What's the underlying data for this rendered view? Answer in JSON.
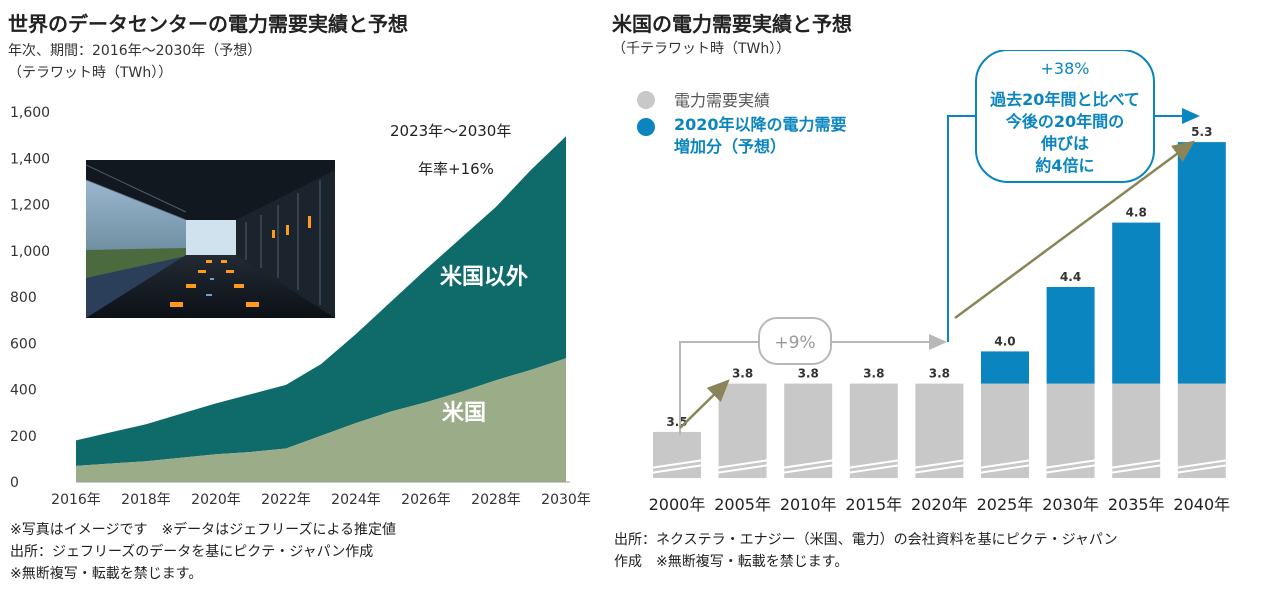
{
  "left": {
    "title": "世界のデータセンターの電力需要実績と予想",
    "subtitle": "年次、期間：2016年～2030年（予想）",
    "unit": "（テラワット時（TWh））",
    "notes": [
      "※写真はイメージです　※データはジェフリーズによる推定値",
      "出所：ジェフリーズのデータを基にピクテ・ジャパン作成",
      "※無断複写・転載を禁じます。"
    ]
  },
  "right": {
    "title": "米国の電力需要実績と予想",
    "unit": "（千テラワット時（TWh））",
    "notes": [
      "出所：ネクステラ・エナジー（米国、電力）の会社資料を基にピクテ・ジャパン",
      "作成　※無断複写・転載を禁じます。"
    ]
  },
  "colors": {
    "teal": "#0f6a6a",
    "sage": "#9aac88",
    "gray": "#c8c8c8",
    "blue": "#0a85c0",
    "olive": "#8a8558"
  },
  "chart_data": [
    {
      "type": "area",
      "stacked": true,
      "x": [
        2016,
        2017,
        2018,
        2019,
        2020,
        2021,
        2022,
        2023,
        2024,
        2025,
        2026,
        2027,
        2028,
        2029,
        2030
      ],
      "xticks": [
        "2016年",
        "2018年",
        "2020年",
        "2022年",
        "2024年",
        "2026年",
        "2028年",
        "2030年"
      ],
      "yticks": [
        "0",
        "200",
        "400",
        "600",
        "800",
        "1,000",
        "1,200",
        "1,400",
        "1,600"
      ],
      "ylim": [
        0,
        1600
      ],
      "series": [
        {
          "name": "米国",
          "values": [
            70,
            80,
            90,
            105,
            120,
            130,
            145,
            200,
            255,
            305,
            345,
            390,
            440,
            485,
            535
          ]
        },
        {
          "name": "米国以外",
          "values": [
            110,
            135,
            160,
            190,
            220,
            250,
            275,
            310,
            385,
            475,
            575,
            665,
            750,
            865,
            960
          ]
        }
      ],
      "annotations": [
        "2023年～2030年",
        "年率+16%"
      ],
      "grid": false
    },
    {
      "type": "bar",
      "stacked": true,
      "categories": [
        "2000年",
        "2005年",
        "2010年",
        "2015年",
        "2020年",
        "2025年",
        "2030年",
        "2035年",
        "2040年"
      ],
      "data_labels": [
        "3.5",
        "3.8",
        "3.8",
        "3.8",
        "3.8",
        "4.0",
        "4.4",
        "4.8",
        "5.3"
      ],
      "series": [
        {
          "name": "電力需要実績",
          "values": [
            3.5,
            3.8,
            3.8,
            3.8,
            3.8,
            3.8,
            3.8,
            3.8,
            3.8
          ]
        },
        {
          "name": "2020年以降の電力需要増加分（予想）",
          "values": [
            0,
            0,
            0,
            0,
            0,
            0.2,
            0.6,
            1.0,
            1.5
          ]
        }
      ],
      "legend": [
        "電力需要実績",
        "2020年以降の電力需要",
        "増加分（予想）"
      ],
      "axis_break": true,
      "annotations": {
        "small_growth": "+9%",
        "big_growth": [
          "+38%",
          "過去20年間と比べて",
          "今後の20年間の",
          "伸びは",
          "約4倍に"
        ]
      }
    }
  ]
}
